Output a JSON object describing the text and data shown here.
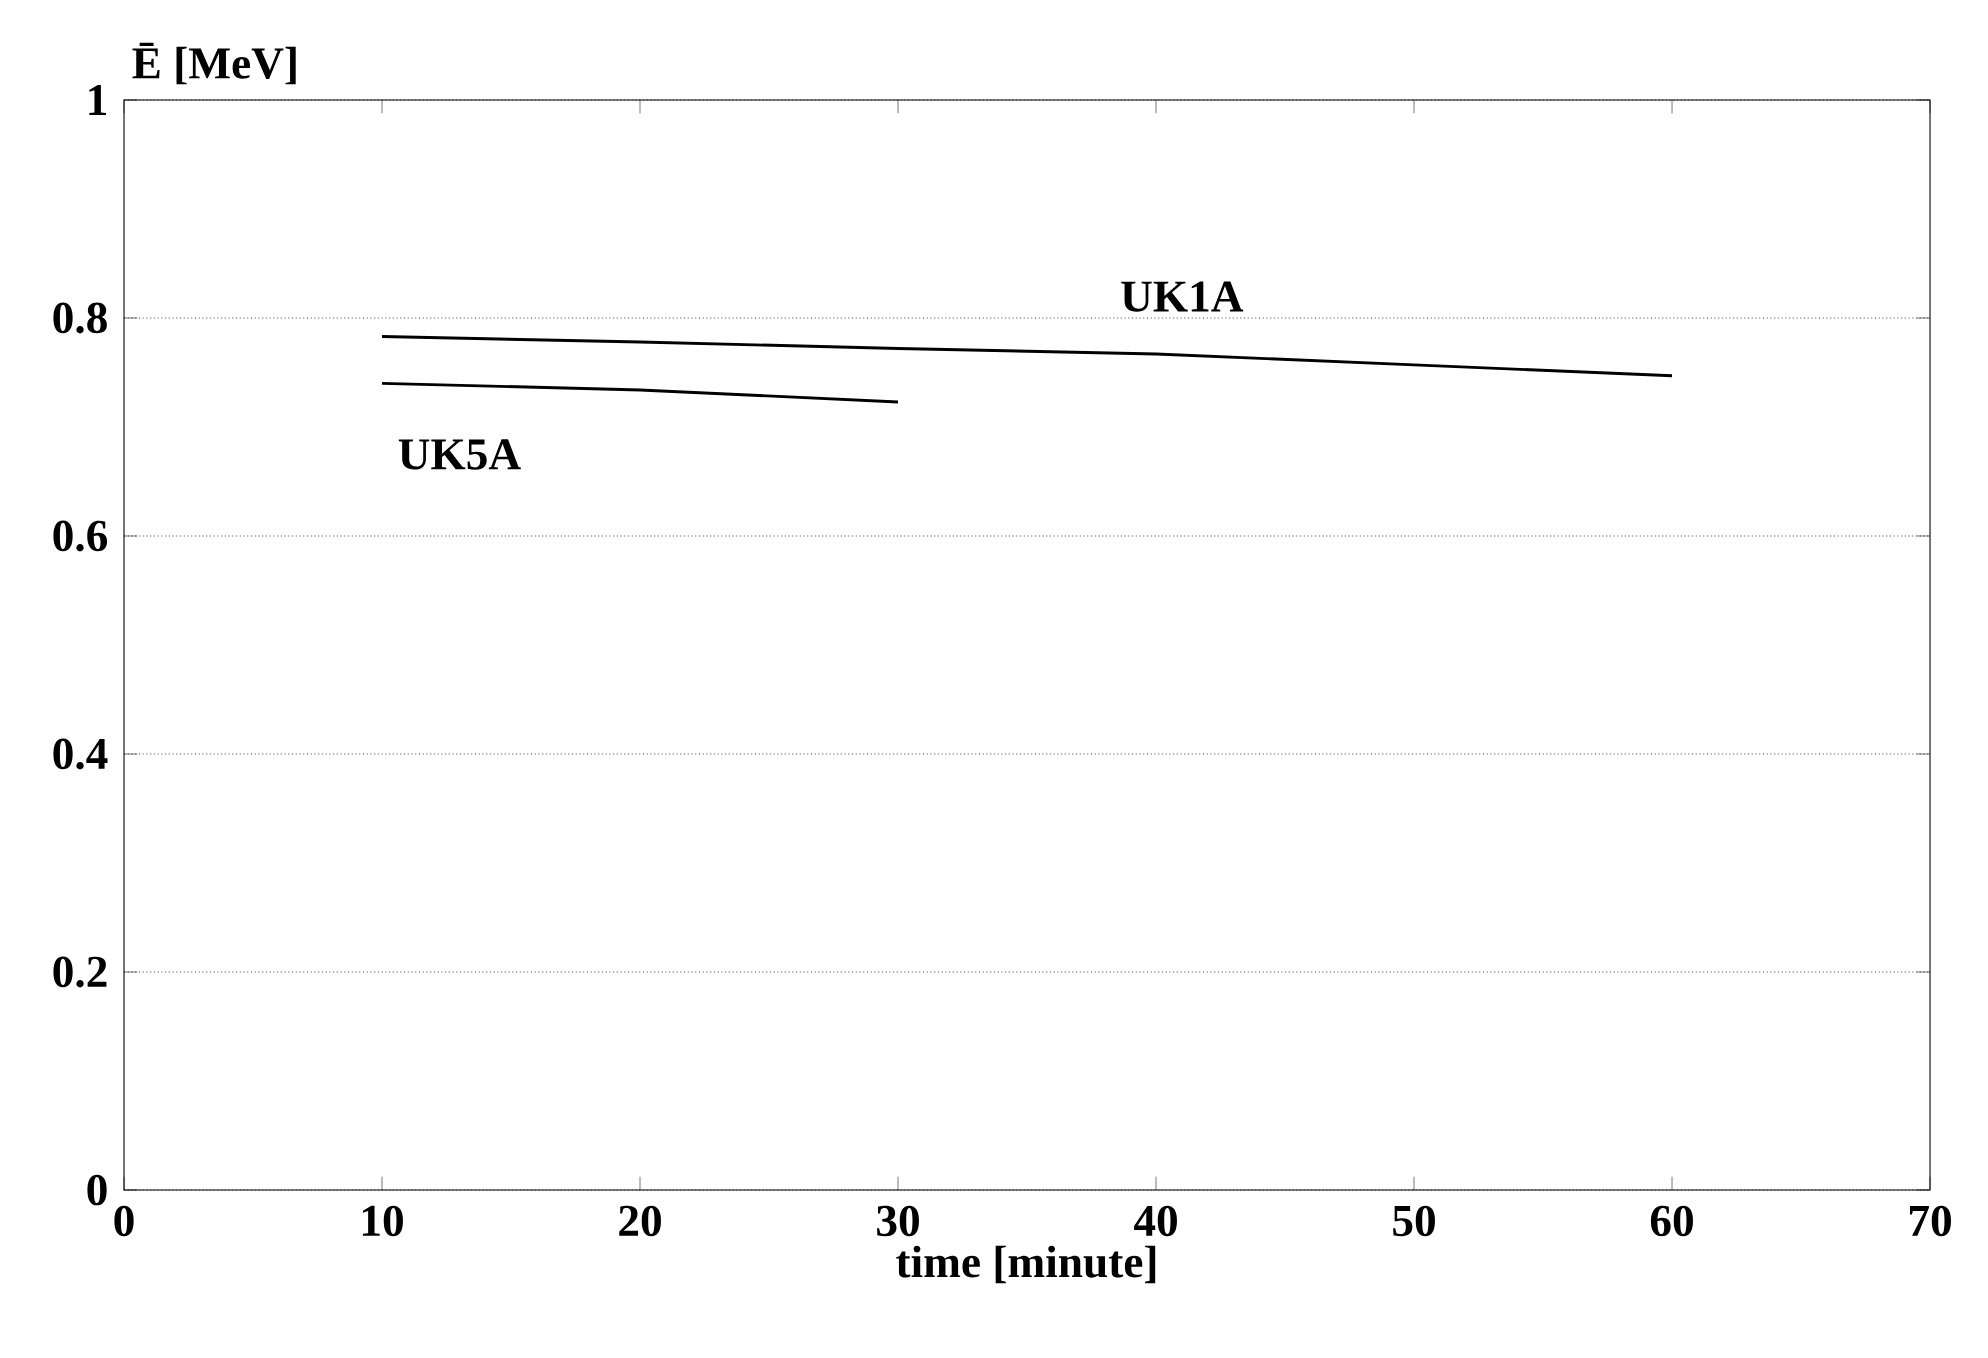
{
  "chart_data": {
    "type": "line",
    "xlabel": "time [minute]",
    "ylabel": "Ē [MeV]",
    "xlim": [
      0,
      70
    ],
    "xticks": [
      0,
      10,
      20,
      30,
      40,
      50,
      60,
      70
    ],
    "ylim": [
      0,
      1
    ],
    "yticks": [
      0,
      0.2,
      0.4,
      0.6,
      0.8,
      1
    ],
    "grid": "y",
    "marker": "none",
    "line_style": "solid",
    "series": [
      {
        "name": "UK1A",
        "color": "#000000",
        "x": [
          10,
          20,
          30,
          40,
          50,
          60
        ],
        "values": [
          0.783,
          0.778,
          0.772,
          0.767,
          0.757,
          0.747
        ]
      },
      {
        "name": "UK5A",
        "color": "#000000",
        "x": [
          10,
          20,
          30
        ],
        "values": [
          0.74,
          0.734,
          0.723
        ]
      }
    ]
  }
}
